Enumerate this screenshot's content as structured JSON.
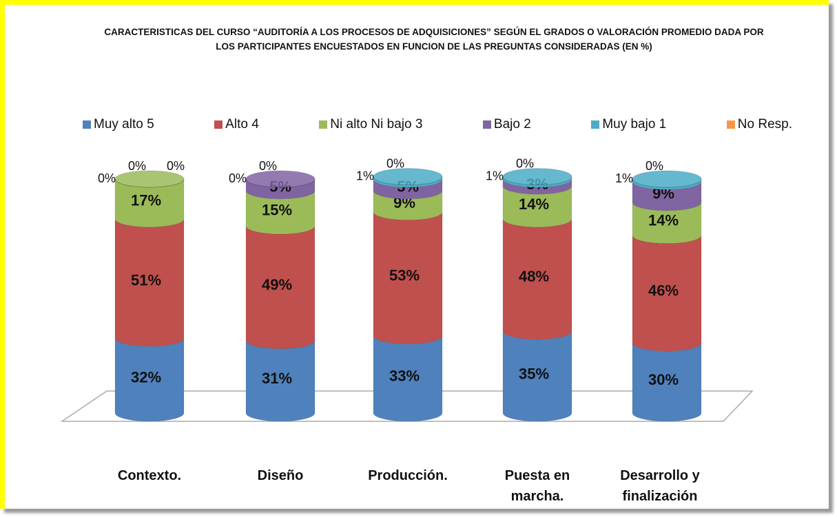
{
  "chart_data": {
    "type": "cylinder-stacked-bar",
    "title": "CARACTERISTICAS DEL CURSO “AUDITORÍA A LOS PROCESOS DE ADQUISICIONES” SEGÚN EL GRADOS O VALORACIÓN PROMEDIO DADA POR LOS PARTICIPANTES ENCUESTADOS EN FUNCION DE LAS PREGUNTAS CONSIDERADAS (EN %)",
    "categories": [
      "Contexto.",
      "Diseño",
      "Producción.",
      "Puesta en marcha.",
      "Desarrollo y finalización"
    ],
    "ylim": [
      0,
      100
    ],
    "legend": "top",
    "series": [
      {
        "name": "Muy alto 5",
        "color": "#4f81bd",
        "values": [
          32,
          31,
          33,
          35,
          30
        ],
        "value_labels": [
          "32%",
          "31%",
          "33%",
          "35%",
          "30%"
        ]
      },
      {
        "name": "Alto 4",
        "color": "#c0504d",
        "values": [
          51,
          49,
          53,
          48,
          46
        ],
        "value_labels": [
          "51%",
          "49%",
          "53%",
          "48%",
          "46%"
        ]
      },
      {
        "name": "Ni alto Ni bajo 3",
        "color": "#9bbb59",
        "values": [
          17,
          15,
          9,
          14,
          14
        ],
        "value_labels": [
          "17%",
          "15%",
          "9%",
          "14%",
          "14%"
        ]
      },
      {
        "name": "Bajo 2",
        "color": "#8064a2",
        "values": [
          0,
          5,
          5,
          3,
          9
        ],
        "value_labels": [
          "0%",
          "5%",
          "5%",
          "3%",
          "9%"
        ]
      },
      {
        "name": "Muy bajo 1",
        "color": "#4bacc6",
        "values": [
          0,
          0,
          1,
          1,
          1
        ],
        "value_labels": [
          "0%",
          "0%",
          "1%",
          "1%",
          "1%"
        ]
      },
      {
        "name": "No Resp.",
        "color": "#f79646",
        "values": [
          0,
          0,
          0,
          0,
          0
        ],
        "value_labels": [
          "0%",
          "0%",
          "0%",
          "0%",
          "0%"
        ]
      }
    ]
  }
}
